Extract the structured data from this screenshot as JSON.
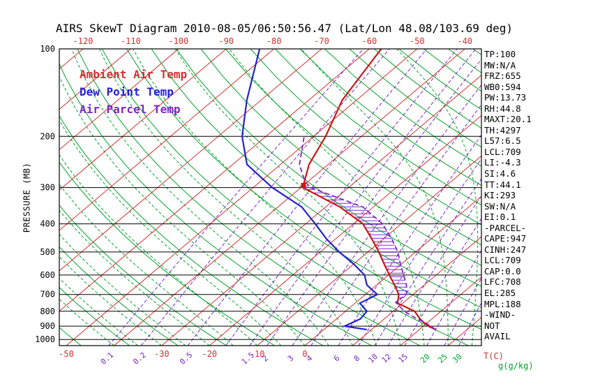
{
  "title": "AIRS SkewT Diagram 2010-08-05/06:50:56.47 (Lat/Lon 48.08/103.69 deg)",
  "legend": {
    "ambient": "Ambient Air Temp",
    "dew": "Dew Point Temp",
    "parcel": "Air Parcel Temp"
  },
  "axes": {
    "y_label": "PRESSURE (MB)",
    "x_unit_label": "T(C)",
    "mixing_unit_label": "g(g/kg)",
    "pressure_ticks": [
      100,
      200,
      300,
      400,
      500,
      600,
      700,
      800,
      900,
      1000
    ],
    "top_temp_labels_c": [
      -120,
      -110,
      -100,
      -90,
      -80,
      -70,
      -60,
      -50,
      -40
    ],
    "bottom_temp_labels_c": [
      -50,
      -30,
      -20,
      -10,
      0
    ],
    "mixing_ratio_labels_purple": [
      0.1,
      0.2,
      0.5,
      1.5,
      2,
      3,
      4,
      6,
      8,
      10,
      12,
      15
    ],
    "mixing_ratio_labels_green": [
      20,
      25,
      30
    ]
  },
  "stats_panel": [
    "TP:100",
    "MW:N/A",
    "FRZ:655",
    "WB0:594",
    "PW:13.73",
    "RH:44.8",
    "MAXT:20.1",
    "TH:4297",
    "L57:6.5",
    "LCL:709",
    "LI:-4.3",
    "SI:4.6",
    "TT:44.1",
    "KI:293",
    "SW:N/A",
    "EI:0.1",
    "-PARCEL-",
    "CAPE:947",
    "CINH:247",
    "LCL:709",
    "CAP:0.0",
    "LFC:708",
    "EL:285",
    "MPL:188",
    "-WIND-",
    "NOT",
    "AVAIL"
  ],
  "colors": {
    "red": "#d43030",
    "curve_red": "#cc1414",
    "blue": "#2222cc",
    "purple": "#7d26cd",
    "green": "#00a428",
    "black": "#000000"
  },
  "chart_data": {
    "type": "line",
    "subtype": "skewt-logp",
    "pressure_range_mb": [
      100,
      1050
    ],
    "isotherms_c": {
      "min": -120,
      "max": 40,
      "step": 10
    },
    "dry_adiabats_c": {
      "min": -60,
      "max": 180,
      "step": 10
    },
    "moist_adiabats_c": {
      "min": -40,
      "max": 40,
      "step": 5
    },
    "mixing_ratio_lines_gkg": [
      0.1,
      0.2,
      0.5,
      1,
      1.5,
      2,
      3,
      4,
      6,
      8,
      10,
      12,
      15,
      20,
      25,
      30,
      40
    ],
    "series": [
      {
        "name": "Ambient Air Temp",
        "color_key": "curve_red",
        "style": "solid",
        "points_p_mb_t_c": [
          [
            925,
            23.5
          ],
          [
            900,
            21.0
          ],
          [
            850,
            17.5
          ],
          [
            800,
            14.5
          ],
          [
            750,
            8.9
          ],
          [
            700,
            7.0
          ],
          [
            650,
            3.8
          ],
          [
            600,
            0.2
          ],
          [
            550,
            -3.6
          ],
          [
            500,
            -7.7
          ],
          [
            450,
            -12.5
          ],
          [
            400,
            -18.0
          ],
          [
            350,
            -27.0
          ],
          [
            300,
            -39.6
          ],
          [
            250,
            -44.0
          ],
          [
            200,
            -47.5
          ],
          [
            150,
            -53.0
          ],
          [
            100,
            -57.5
          ]
        ]
      },
      {
        "name": "Dew Point Temp",
        "color_key": "blue",
        "style": "solid",
        "points_p_mb_t_c": [
          [
            925,
            9.0
          ],
          [
            900,
            3.5
          ],
          [
            850,
            5.0
          ],
          [
            800,
            4.5
          ],
          [
            750,
            1.0
          ],
          [
            700,
            2.5
          ],
          [
            650,
            -2.0
          ],
          [
            600,
            -5.0
          ],
          [
            550,
            -10.0
          ],
          [
            500,
            -16.0
          ],
          [
            450,
            -22.0
          ],
          [
            400,
            -28.0
          ],
          [
            350,
            -35.0
          ],
          [
            300,
            -46.0
          ],
          [
            250,
            -57.0
          ],
          [
            200,
            -65.0
          ],
          [
            150,
            -73.0
          ],
          [
            100,
            -83.0
          ]
        ]
      },
      {
        "name": "Air Parcel Temp",
        "color_key": "purple",
        "style": "dashed",
        "points_p_mb_t_c": [
          [
            925,
            23.5
          ],
          [
            875,
            19.5
          ],
          [
            850,
            16.9
          ],
          [
            800,
            12.3
          ],
          [
            760,
            9.5
          ],
          [
            745,
            8.3
          ],
          [
            700,
            8.6
          ],
          [
            650,
            6.3
          ],
          [
            600,
            3.2
          ],
          [
            550,
            -0.2
          ],
          [
            500,
            -3.7
          ],
          [
            450,
            -8.3
          ],
          [
            400,
            -13.9
          ],
          [
            350,
            -22.2
          ],
          [
            300,
            -38.0
          ],
          [
            285,
            -40.8
          ],
          [
            250,
            -46.0
          ],
          [
            200,
            -52.0
          ]
        ]
      }
    ],
    "cape_hatch": {
      "between": [
        "Ambient Air Temp",
        "Air Parcel Temp"
      ],
      "p_bottom_mb": 738,
      "p_top_mb": 292
    },
    "marker": {
      "p_mb": 295,
      "t_c": -40,
      "shape": "square"
    }
  }
}
